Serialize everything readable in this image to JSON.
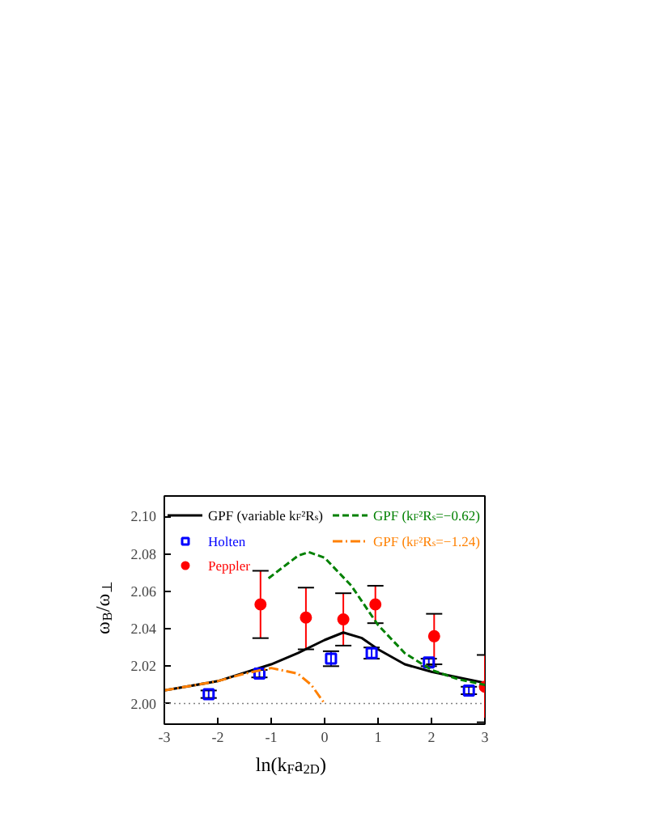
{
  "chart_data": {
    "type": "line",
    "xlabel": "ln(k$_{F}$a$_{2D}$)",
    "ylabel": "ω$_{B}$/ω$_{⊥}$",
    "xlim": [
      -3,
      3
    ],
    "ylim": [
      1.989,
      2.111
    ],
    "xticks": [
      -3,
      -2,
      -1,
      0,
      1,
      2,
      3
    ],
    "yticks": [
      {
        "value": 2.0,
        "label": "2.00"
      },
      {
        "value": 2.02,
        "label": "2.02"
      },
      {
        "value": 2.04,
        "label": "2.04"
      },
      {
        "value": 2.06,
        "label": "2.06"
      },
      {
        "value": 2.08,
        "label": "2.08"
      },
      {
        "value": 2.1,
        "label": "2.10"
      }
    ],
    "grid": false,
    "legend": "top",
    "ref_lines": [
      {
        "axis": "y",
        "value": 2.0,
        "color": "#808080",
        "line_style": "dotted"
      }
    ],
    "series": [
      {
        "name": "GPF (variable k$_{F}$²R$_{s}$)",
        "color": "#000000",
        "line_style": "solid",
        "x": [
          -3,
          -2,
          -1,
          -0.5,
          0,
          0.35,
          0.7,
          1,
          1.5,
          2,
          2.5,
          3
        ],
        "values": [
          2.007,
          2.012,
          2.021,
          2.027,
          2.034,
          2.038,
          2.035,
          2.029,
          2.021,
          2.017,
          2.014,
          2.011
        ]
      },
      {
        "type": "scatter",
        "name": "Holten",
        "color": "#0000ff",
        "marker": "square",
        "x": [
          -2.17,
          -1.22,
          0.12,
          0.88,
          1.95,
          2.7
        ],
        "values": [
          2.005,
          2.016,
          2.024,
          2.027,
          2.022,
          2.007
        ],
        "errors": [
          0.002,
          0.002,
          0.004,
          0.003,
          0.002,
          0.002
        ]
      },
      {
        "type": "scatter",
        "name": "Peppler",
        "color": "#ff0000",
        "marker": "circle",
        "x": [
          -1.2,
          -0.35,
          0.35,
          0.95,
          2.05,
          3.0
        ],
        "values": [
          2.053,
          2.046,
          2.045,
          2.053,
          2.036,
          2.009
        ],
        "errors": [
          [
            2.035,
            2.071
          ],
          [
            2.029,
            2.062
          ],
          [
            2.031,
            2.059
          ],
          [
            2.043,
            2.063
          ],
          [
            2.021,
            2.048
          ],
          [
            1.99,
            2.026
          ]
        ]
      },
      {
        "type": "line",
        "name": "GPF (k$_{F}$²R$_{s}$=−0.62)",
        "color": "#008000",
        "line_style": "dashed",
        "x": [
          -1.05,
          -0.5,
          -0.3,
          0,
          0.5,
          1,
          1.5,
          2,
          2.5,
          3
        ],
        "values": [
          2.067,
          2.079,
          2.081,
          2.078,
          2.063,
          2.042,
          2.027,
          2.018,
          2.013,
          2.01
        ]
      },
      {
        "type": "line",
        "name": "GPF (k$_{F}$²R$_{s}$=−1.24)",
        "color": "#ff8000",
        "line_style": "dashdot",
        "x": [
          -3,
          -2,
          -1.5,
          -1,
          -0.5,
          -0.25,
          0
        ],
        "values": [
          2.007,
          2.012,
          2.016,
          2.019,
          2.016,
          2.01,
          2.0
        ]
      }
    ]
  }
}
